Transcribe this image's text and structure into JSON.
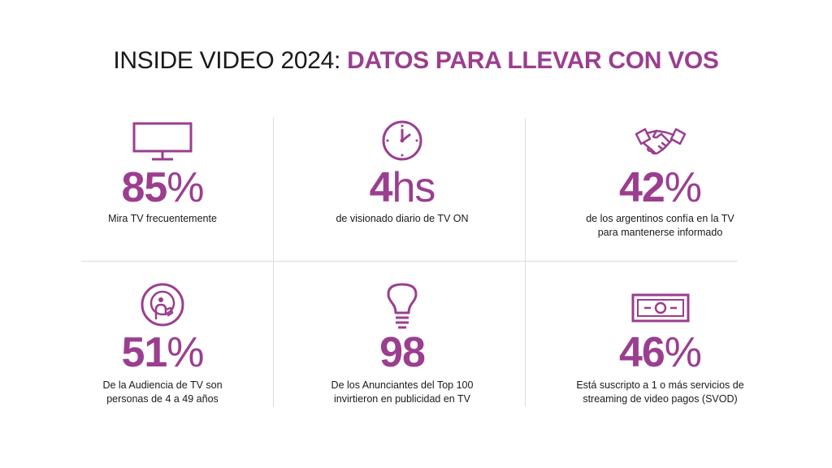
{
  "title": {
    "part1": "INSIDE VIDEO 2024: ",
    "part2": "DATOS PARA LLEVAR CON VOS"
  },
  "colors": {
    "accent": "#9b3e8f",
    "text": "#1a1a1a",
    "divider": "#dcdcdc"
  },
  "stats": [
    {
      "icon": "tv-icon",
      "number": "85",
      "unit": "%",
      "description": "Mira TV frecuentemente"
    },
    {
      "icon": "clock-icon",
      "number": "4",
      "unit": "hs",
      "description": "de visionado diario de TV ON"
    },
    {
      "icon": "handshake-icon",
      "number": "42",
      "unit": "%",
      "description": "de los argentinos confía en la TV\npara mantenerse informado"
    },
    {
      "icon": "audience-icon",
      "number": "51",
      "unit": "%",
      "description": "De la Audiencia de TV son\npersonas de 4 a 49 años"
    },
    {
      "icon": "lightbulb-icon",
      "number": "98",
      "unit": "",
      "description": "De los Anunciantes del Top 100\ninvirtieron en publicidad en TV"
    },
    {
      "icon": "banknote-icon",
      "number": "46",
      "unit": "%",
      "description": "Está suscripto a 1 o más servicios de\nstreaming de video pagos (SVOD)"
    }
  ]
}
